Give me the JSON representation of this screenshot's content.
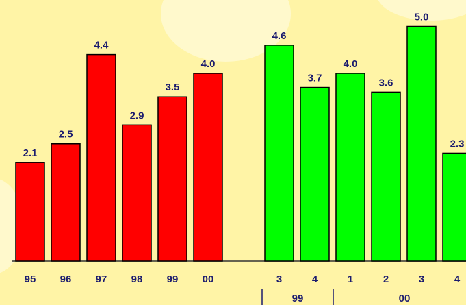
{
  "chart_data": [
    {
      "type": "bar",
      "color": "#ff0000",
      "categories": [
        "95",
        "96",
        "97",
        "98",
        "99",
        "00"
      ],
      "values": [
        2.1,
        2.5,
        4.4,
        2.9,
        3.5,
        4.0
      ],
      "value_labels": [
        "2.1",
        "2.5",
        "4.4",
        "2.9",
        "3.5",
        "4.0"
      ]
    },
    {
      "type": "bar",
      "color": "#00ff00",
      "category_groups": [
        {
          "label": "99",
          "categories": [
            "3",
            "4"
          ],
          "values": [
            4.6,
            3.7
          ],
          "value_labels": [
            "4.6",
            "3.7"
          ]
        },
        {
          "label": "00",
          "categories": [
            "1",
            "2",
            "3",
            "4"
          ],
          "values": [
            4.0,
            3.6,
            5.0,
            2.3
          ],
          "value_labels": [
            "4.0",
            "3.6",
            "5.0",
            "2.3"
          ]
        }
      ]
    }
  ]
}
